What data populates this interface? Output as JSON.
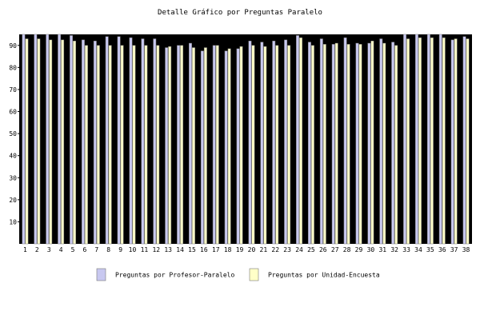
{
  "chart_data": {
    "type": "bar",
    "title": "Detalle Gráfico por Preguntas Paralelo",
    "xlabel": "",
    "ylabel": "",
    "ylim": [
      0,
      95
    ],
    "yticks": [
      10,
      20,
      30,
      40,
      50,
      60,
      70,
      80,
      90
    ],
    "grid": false,
    "legend_position": "bottom",
    "categories": [
      "1",
      "2",
      "3",
      "4",
      "5",
      "6",
      "7",
      "8",
      "9",
      "10",
      "11",
      "12",
      "13",
      "14",
      "15",
      "16",
      "17",
      "18",
      "19",
      "20",
      "21",
      "22",
      "23",
      "24",
      "25",
      "26",
      "27",
      "28",
      "29",
      "30",
      "31",
      "32",
      "33",
      "34",
      "35",
      "36",
      "37",
      "38"
    ],
    "series": [
      {
        "name": "Preguntas por Profesor-Paralelo",
        "color": "#c8c8f0",
        "values": [
          95,
          95,
          95,
          95,
          94.5,
          92.5,
          92,
          94,
          94,
          93.5,
          93,
          93,
          89,
          90,
          91,
          87.5,
          90,
          87.5,
          88.5,
          92,
          91.5,
          92,
          92.5,
          94.5,
          91.5,
          93,
          90.5,
          93.5,
          91,
          91,
          93,
          91.5,
          95,
          95,
          95,
          95,
          92.5,
          94
        ]
      },
      {
        "name": "Preguntas por Unidad-Encuesta",
        "color": "#ffffc8",
        "values": [
          93,
          93,
          92.5,
          92.5,
          92,
          90,
          90,
          90,
          90,
          90,
          90,
          90,
          89.5,
          90,
          89,
          89,
          90,
          88.5,
          89.5,
          90,
          89.5,
          90,
          90,
          93.5,
          90,
          90.5,
          91,
          90.5,
          90.5,
          92,
          91,
          90,
          93,
          93.5,
          93.5,
          93.5,
          93,
          93
        ]
      }
    ]
  }
}
